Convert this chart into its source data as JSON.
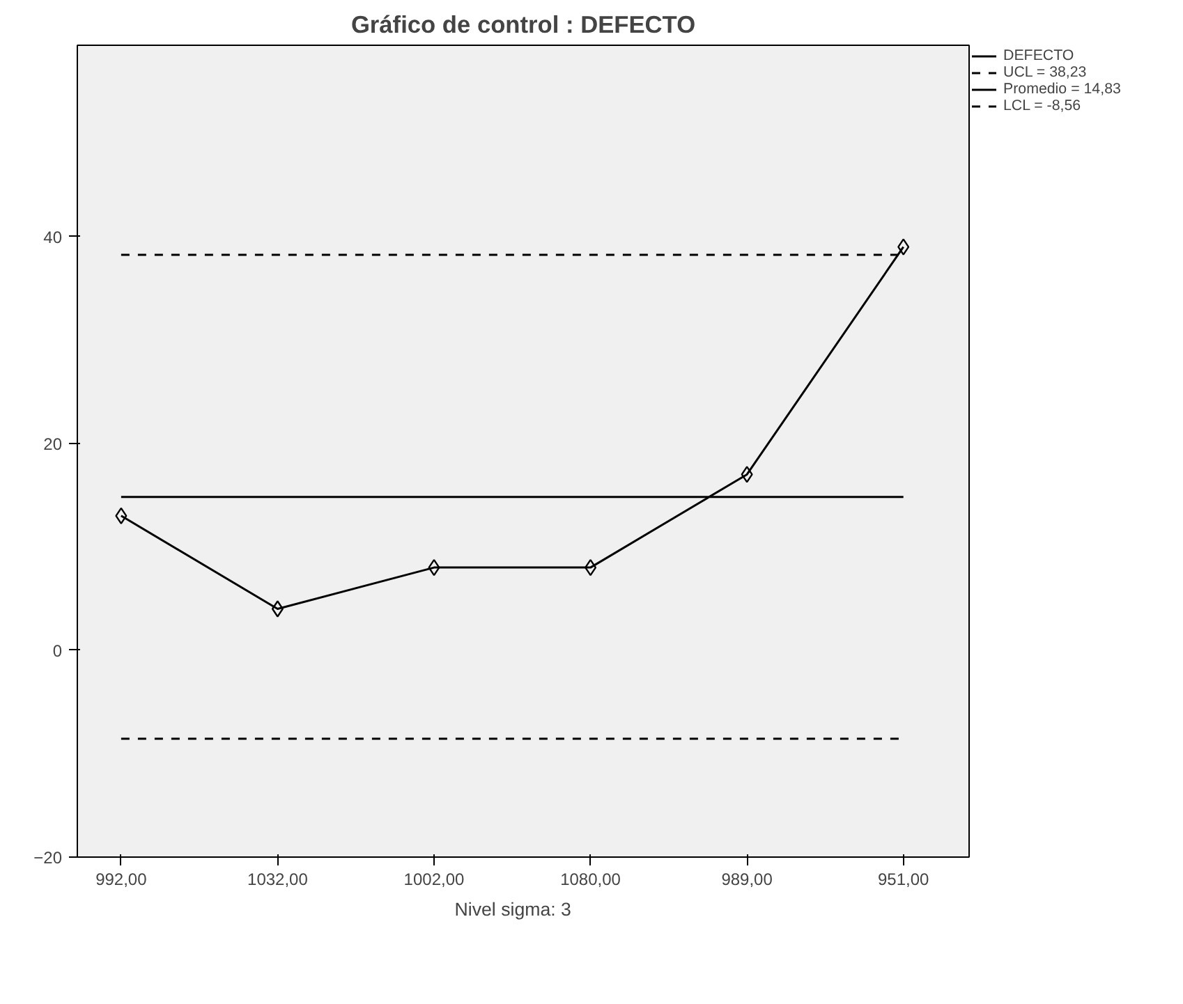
{
  "chart_data": {
    "type": "line",
    "title": "Gráfico de control : DEFECTO",
    "categories": [
      "992,00",
      "1032,00",
      "1002,00",
      "1080,00",
      "989,00",
      "951,00"
    ],
    "series": [
      {
        "name": "DEFECTO",
        "color": "#000000",
        "values": [
          13,
          4,
          8,
          8,
          17,
          39
        ]
      }
    ],
    "ylim": [
      -20,
      58.5
    ],
    "yticks": [
      -20,
      0,
      20,
      40
    ],
    "marker": "diamond",
    "line_style": "solid",
    "grid": false,
    "legend": "right",
    "ref_lines": [
      {
        "axis": "y",
        "value": 38.23,
        "label": "UCL = 38,23",
        "color": "#000000",
        "line_style": "dashed"
      },
      {
        "axis": "y",
        "value": 14.83,
        "label": "Promedio = 14,83",
        "color": "#000000",
        "line_style": "solid"
      },
      {
        "axis": "y",
        "value": -8.56,
        "label": "LCL = -8,56",
        "color": "#000000",
        "line_style": "dashed"
      }
    ],
    "annotations": [
      "Nivel sigma:     3"
    ]
  }
}
